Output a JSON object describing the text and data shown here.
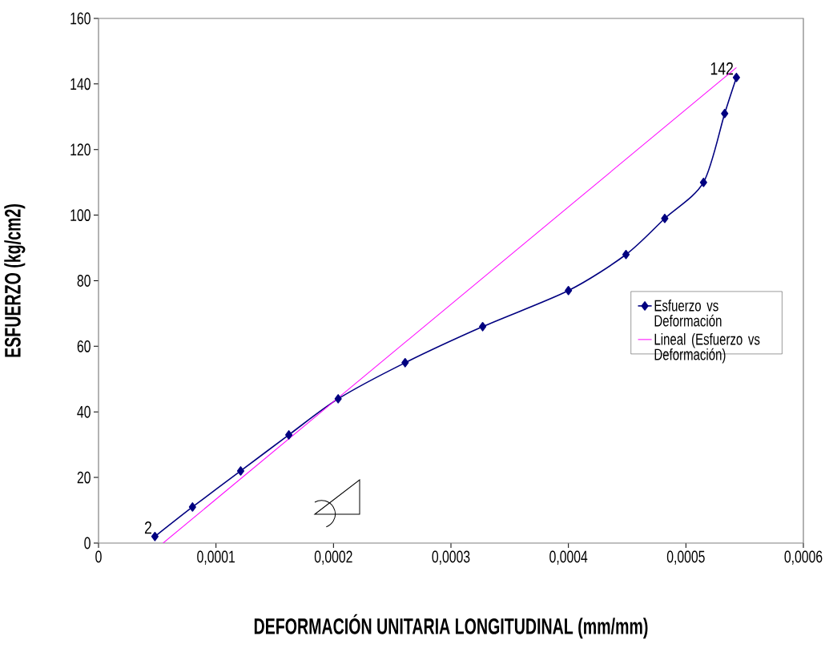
{
  "chart_data": {
    "type": "line",
    "xlabel": "DEFORMACIÓN UNITARIA LONGITUDINAL (mm/mm)",
    "ylabel": "ESFUERZO (kg/cm2)",
    "xlim": [
      0,
      0.0006
    ],
    "ylim": [
      0,
      160
    ],
    "xticks": [
      0,
      {
        "value": 0.0001,
        "label": "0,0001"
      },
      {
        "value": 0.0002,
        "label": "0,0002"
      },
      {
        "value": 0.0003,
        "label": "0,0003"
      },
      {
        "value": 0.0004,
        "label": "0,0004"
      },
      {
        "value": 0.0005,
        "label": "0,0005"
      },
      {
        "value": 0.0006,
        "label": "0,0006"
      }
    ],
    "yticks": [
      0,
      20,
      40,
      60,
      80,
      100,
      120,
      140,
      160
    ],
    "legend": "right",
    "series": [
      {
        "name": "Esfuerzo vs Deformación",
        "color": "#000080",
        "marker": "diamond",
        "x": [
          4.8e-05,
          8e-05,
          0.000121,
          0.000162,
          0.000204,
          0.000261,
          0.000327,
          0.0004,
          0.000449,
          0.000482,
          0.000515,
          0.000533,
          0.000543
        ],
        "values": [
          2,
          11,
          22,
          33,
          44,
          55,
          66,
          77,
          88,
          99,
          110,
          131,
          142
        ],
        "value_labels": [
          "2",
          null,
          null,
          null,
          null,
          null,
          null,
          null,
          null,
          null,
          null,
          null,
          "142"
        ]
      },
      {
        "name": "Lineal (Esfuerzo vs Deformación)",
        "color": "#ff00ff",
        "marker": "none",
        "x": [
          5.5e-05,
          0.000543
        ],
        "values": [
          0,
          145
        ]
      }
    ]
  }
}
